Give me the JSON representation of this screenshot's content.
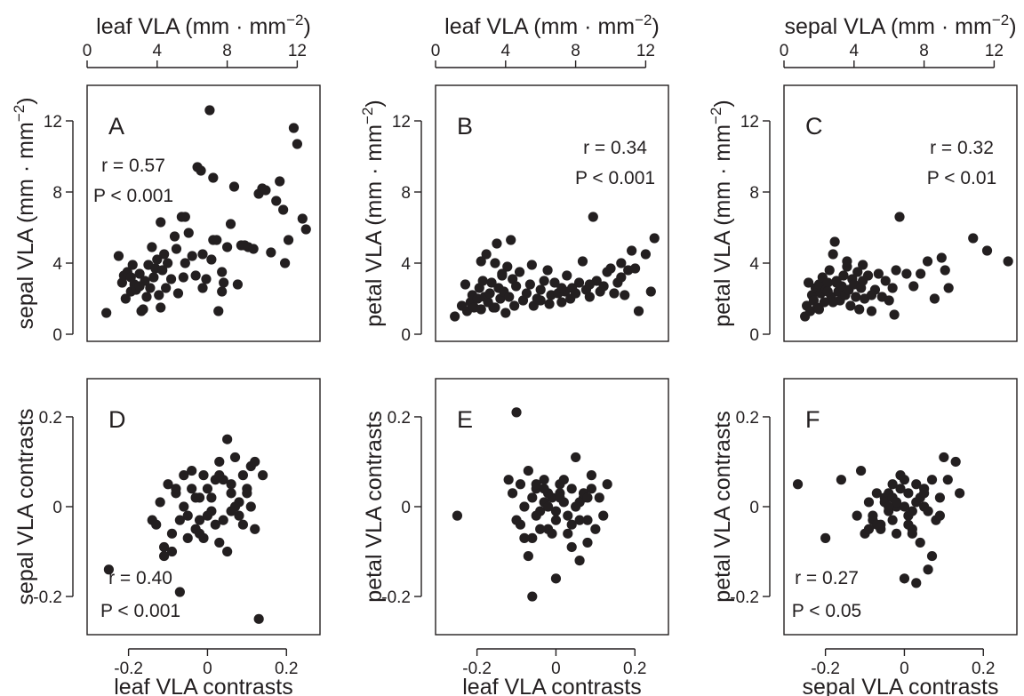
{
  "figure_title": "",
  "chart_data": [
    {
      "type": "scatter",
      "panel": "A",
      "xlabel": "leaf VLA (mm · mm−2)",
      "x_axis_side": "top",
      "ylabel": "sepal VLA (mm · mm−2)",
      "xlim": [
        0,
        13.3
      ],
      "ylim": [
        -0.4,
        14.0
      ],
      "xticks": [
        0,
        4,
        8,
        12
      ],
      "yticks": [
        0,
        4,
        8,
        12
      ],
      "r": "r = 0.57",
      "p": "P < 0.001",
      "x": [
        1.1,
        1.8,
        2.0,
        2.1,
        2.2,
        2.3,
        2.5,
        2.6,
        2.7,
        2.8,
        3.0,
        3.1,
        3.2,
        3.3,
        3.4,
        3.5,
        3.6,
        3.7,
        3.8,
        3.9,
        4.0,
        4.1,
        4.2,
        4.3,
        4.4,
        4.5,
        4.6,
        4.8,
        5.0,
        5.1,
        5.2,
        5.4,
        5.5,
        5.6,
        5.8,
        6.0,
        6.2,
        6.3,
        6.5,
        6.6,
        6.8,
        7.0,
        7.1,
        7.2,
        7.4,
        7.5,
        7.7,
        7.8,
        8.0,
        8.2,
        8.4,
        8.6,
        8.8,
        9.0,
        9.2,
        9.5,
        9.8,
        10.0,
        10.2,
        10.5,
        10.8,
        11.0,
        11.2,
        11.3,
        11.5,
        11.8,
        12.0,
        12.3,
        12.5,
        6.6,
        7.2,
        7.7,
        4.2,
        5.6,
        2.5,
        3.0
      ],
      "y": [
        1.2,
        4.4,
        2.9,
        3.3,
        2.0,
        3.5,
        2.4,
        3.9,
        2.8,
        2.5,
        3.4,
        1.3,
        1.4,
        3.0,
        2.1,
        3.9,
        2.6,
        4.9,
        3.2,
        3.7,
        4.2,
        2.2,
        1.5,
        3.6,
        4.5,
        2.6,
        4.0,
        3.1,
        5.5,
        4.8,
        2.3,
        6.6,
        3.2,
        4.0,
        5.7,
        4.4,
        3.3,
        9.4,
        9.2,
        2.6,
        3.1,
        12.6,
        4.2,
        8.8,
        5.3,
        1.3,
        3.5,
        2.9,
        4.9,
        6.2,
        8.3,
        2.8,
        5.0,
        5.0,
        4.9,
        4.8,
        7.9,
        8.2,
        8.1,
        4.6,
        7.5,
        8.6,
        7.0,
        4.0,
        5.3,
        11.6,
        10.7,
        6.5,
        5.9,
        4.5,
        5.3,
        2.4,
        6.3,
        6.6,
        3.2,
        2.7
      ]
    },
    {
      "type": "scatter",
      "panel": "B",
      "xlabel": "leaf VLA (mm · mm−2)",
      "x_axis_side": "top",
      "ylabel": "petal VLA (mm · mm−2)",
      "xlim": [
        0,
        13.3
      ],
      "ylim": [
        -0.4,
        14.0
      ],
      "xticks": [
        0,
        4,
        8,
        12
      ],
      "yticks": [
        0,
        4,
        8,
        12
      ],
      "r": "r = 0.34",
      "p": "P < 0.001",
      "x": [
        1.1,
        1.5,
        1.7,
        1.8,
        2.0,
        2.1,
        2.2,
        2.4,
        2.5,
        2.6,
        2.7,
        2.8,
        2.9,
        3.0,
        3.1,
        3.2,
        3.3,
        3.4,
        3.5,
        3.6,
        3.7,
        3.8,
        3.9,
        4.0,
        4.1,
        4.2,
        4.3,
        4.4,
        4.5,
        4.6,
        4.8,
        5.0,
        5.2,
        5.4,
        5.5,
        5.6,
        5.8,
        6.0,
        6.2,
        6.4,
        6.5,
        6.6,
        6.8,
        7.0,
        7.2,
        7.4,
        7.5,
        7.7,
        7.8,
        8.0,
        8.2,
        8.4,
        8.6,
        8.8,
        9.0,
        9.2,
        9.4,
        9.6,
        9.8,
        10.0,
        10.2,
        10.4,
        10.6,
        10.8,
        11.0,
        11.2,
        11.4,
        11.6,
        12.0,
        12.3,
        12.5,
        8.8,
        3.4,
        3.8,
        7.2,
        6.0,
        10.6,
        2.6
      ],
      "y": [
        1.0,
        1.6,
        2.8,
        1.3,
        1.8,
        2.2,
        1.5,
        2.0,
        2.6,
        1.4,
        3.0,
        2.1,
        4.5,
        1.8,
        2.3,
        2.9,
        1.5,
        4.0,
        5.1,
        2.6,
        2.0,
        3.3,
        2.4,
        1.2,
        3.8,
        2.1,
        5.3,
        3.1,
        1.6,
        2.7,
        3.5,
        1.9,
        2.3,
        2.8,
        3.9,
        1.6,
        2.0,
        2.5,
        3.0,
        3.6,
        1.7,
        2.2,
        2.9,
        2.3,
        1.8,
        2.4,
        3.3,
        2.0,
        2.6,
        2.3,
        2.9,
        4.1,
        2.5,
        2.1,
        6.6,
        3.0,
        2.4,
        2.7,
        3.5,
        3.7,
        2.3,
        2.9,
        4.0,
        2.2,
        3.6,
        4.7,
        3.7,
        1.3,
        4.5,
        2.4,
        5.4,
        2.8,
        1.5,
        3.4,
        2.6,
        1.9,
        3.2,
        4.1
      ]
    },
    {
      "type": "scatter",
      "panel": "C",
      "xlabel": "sepal VLA (mm · mm−2)",
      "x_axis_side": "top",
      "ylabel": "petal VLA (mm · mm−2)",
      "xlim": [
        0,
        13.3
      ],
      "ylim": [
        -0.4,
        14.0
      ],
      "xticks": [
        0,
        4,
        8,
        12
      ],
      "yticks": [
        0,
        4,
        8,
        12
      ],
      "r": "r = 0.32",
      "p": "P < 0.01",
      "x": [
        1.2,
        1.3,
        1.4,
        1.5,
        1.6,
        1.7,
        1.8,
        1.9,
        2.0,
        2.1,
        2.2,
        2.3,
        2.4,
        2.5,
        2.6,
        2.7,
        2.8,
        2.9,
        3.0,
        3.1,
        3.2,
        3.3,
        3.4,
        3.5,
        3.6,
        3.7,
        3.8,
        3.9,
        4.0,
        4.1,
        4.2,
        4.3,
        4.4,
        4.5,
        4.6,
        4.8,
        5.0,
        5.2,
        5.4,
        5.6,
        5.8,
        6.0,
        6.2,
        6.4,
        6.6,
        7.0,
        7.4,
        7.8,
        8.2,
        8.6,
        9.0,
        9.2,
        9.4,
        10.8,
        11.6,
        12.8,
        6.3,
        2.5,
        3.0,
        3.6,
        4.5,
        5.0,
        2.0,
        2.8
      ],
      "y": [
        1.0,
        1.6,
        2.9,
        1.3,
        2.2,
        1.9,
        2.6,
        1.5,
        2.8,
        2.3,
        3.2,
        1.8,
        2.5,
        2.9,
        3.6,
        2.1,
        4.5,
        5.2,
        3.0,
        2.4,
        1.9,
        2.7,
        3.3,
        2.2,
        3.8,
        2.5,
        1.6,
        3.1,
        2.8,
        2.1,
        3.5,
        1.4,
        2.6,
        3.9,
        2.0,
        3.3,
        1.3,
        2.5,
        3.4,
        2.1,
        3.0,
        1.9,
        2.6,
        3.6,
        6.6,
        3.4,
        2.7,
        3.4,
        4.1,
        2.0,
        4.3,
        3.6,
        2.6,
        5.4,
        4.7,
        4.1,
        1.1,
        2.4,
        2.9,
        4.1,
        3.0,
        2.2,
        1.4,
        1.8
      ]
    },
    {
      "type": "scatter",
      "panel": "D",
      "xlabel": "leaf VLA contrasts",
      "x_axis_side": "bottom",
      "ylabel": "sepal VLA contrasts",
      "xlim": [
        -0.305,
        0.285
      ],
      "ylim": [
        -0.285,
        0.285
      ],
      "xticks": [
        -0.2,
        0,
        0.2
      ],
      "yticks": [
        -0.2,
        0,
        0.2
      ],
      "xticklabels": [
        "-0.2",
        "0",
        "0.2"
      ],
      "yticklabels": [
        "-0.2",
        "0",
        "0.2"
      ],
      "r": "r = 0.40",
      "p": "P < 0.001",
      "x": [
        -0.25,
        -0.14,
        -0.13,
        -0.12,
        -0.11,
        -0.1,
        -0.09,
        -0.08,
        -0.07,
        -0.06,
        -0.05,
        -0.04,
        -0.03,
        -0.02,
        -0.01,
        0.0,
        0.01,
        0.02,
        0.03,
        0.04,
        0.05,
        0.06,
        0.07,
        0.08,
        0.09,
        0.1,
        0.11,
        0.12,
        0.13,
        0.14,
        -0.09,
        -0.06,
        -0.04,
        -0.02,
        0.01,
        0.03,
        0.06,
        0.08,
        -0.07,
        -0.03,
        0.0,
        0.04,
        0.07,
        0.1,
        -0.05,
        0.02,
        0.05,
        -0.01,
        0.09,
        0.12,
        -0.11,
        0.06,
        -0.08,
        -0.02,
        0.03,
        0.11
      ],
      "y": [
        -0.14,
        -0.03,
        -0.04,
        0.01,
        -0.09,
        0.05,
        -0.06,
        0.03,
        -0.19,
        0.07,
        -0.02,
        0.08,
        -0.05,
        0.02,
        -0.07,
        0.04,
        -0.01,
        0.06,
        0.1,
        -0.03,
        0.15,
        0.03,
        0.11,
        -0.02,
        0.07,
        0.04,
        0.09,
        -0.05,
        -0.25,
        0.07,
        -0.1,
        0.0,
        0.04,
        -0.06,
        0.02,
        -0.08,
        0.05,
        0.01,
        -0.03,
        0.02,
        -0.02,
        0.06,
        0.0,
        0.03,
        -0.07,
        -0.04,
        -0.1,
        0.07,
        -0.04,
        0.1,
        -0.11,
        -0.01,
        0.04,
        -0.03,
        0.07,
        0.0
      ]
    },
    {
      "type": "scatter",
      "panel": "E",
      "xlabel": "leaf VLA contrasts",
      "x_axis_side": "bottom",
      "ylabel": "petal VLA contrasts",
      "xlim": [
        -0.305,
        0.285
      ],
      "ylim": [
        -0.285,
        0.285
      ],
      "xticks": [
        -0.2,
        0,
        0.2
      ],
      "yticks": [
        -0.2,
        0,
        0.2
      ],
      "xticklabels": [
        "-0.2",
        "0",
        "0.2"
      ],
      "yticklabels": [
        "-0.2",
        "0",
        "0.2"
      ],
      "r": "",
      "p": "",
      "x": [
        -0.25,
        -0.12,
        -0.11,
        -0.1,
        -0.09,
        -0.08,
        -0.07,
        -0.06,
        -0.05,
        -0.04,
        -0.03,
        -0.02,
        -0.01,
        0.0,
        0.01,
        0.02,
        0.03,
        0.04,
        0.05,
        0.06,
        0.07,
        0.08,
        0.09,
        0.1,
        0.11,
        0.12,
        0.13,
        -0.1,
        -0.08,
        -0.06,
        -0.04,
        -0.02,
        0.0,
        0.02,
        0.04,
        0.06,
        0.08,
        -0.09,
        -0.07,
        -0.05,
        -0.03,
        -0.01,
        0.01,
        0.03,
        0.05,
        0.07,
        -0.06,
        -0.03,
        0.0,
        0.04,
        0.09,
        -0.02,
        -0.05,
        0.06,
        0.01,
        0.08
      ],
      "y": [
        -0.02,
        0.06,
        0.03,
        0.21,
        -0.04,
        0.0,
        0.08,
        -0.07,
        0.04,
        -0.01,
        0.06,
        -0.05,
        0.02,
        -0.03,
        0.05,
        0.01,
        -0.06,
        0.04,
        0.11,
        -0.12,
        0.02,
        -0.03,
        0.07,
        -0.05,
        0.02,
        -0.02,
        0.05,
        -0.03,
        -0.07,
        0.02,
        -0.05,
        0.03,
        -0.01,
        0.06,
        -0.04,
        0.01,
        -0.08,
        0.05,
        -0.11,
        -0.02,
        0.04,
        -0.06,
        0.03,
        -0.02,
        0.0,
        0.03,
        -0.2,
        0.01,
        -0.16,
        -0.09,
        0.04,
        0.0,
        0.05,
        -0.03,
        0.02,
        0.02
      ]
    },
    {
      "type": "scatter",
      "panel": "F",
      "xlabel": "sepal VLA contrasts",
      "x_axis_side": "bottom",
      "ylabel": "petal VLA contrasts",
      "xlim": [
        -0.305,
        0.285
      ],
      "ylim": [
        -0.285,
        0.285
      ],
      "xticks": [
        -0.2,
        0,
        0.2
      ],
      "yticks": [
        -0.2,
        0,
        0.2
      ],
      "xticklabels": [
        "-0.2",
        "0",
        "0.2"
      ],
      "yticklabels": [
        "-0.2",
        "0",
        "0.2"
      ],
      "r": "r = 0.27",
      "p": "P < 0.05",
      "x": [
        -0.27,
        -0.2,
        -0.16,
        -0.12,
        -0.11,
        -0.1,
        -0.09,
        -0.08,
        -0.07,
        -0.06,
        -0.05,
        -0.04,
        -0.03,
        -0.02,
        -0.01,
        0.0,
        0.01,
        0.02,
        0.03,
        0.04,
        0.05,
        0.06,
        0.07,
        0.08,
        0.09,
        0.1,
        0.11,
        0.13,
        -0.08,
        -0.05,
        -0.03,
        -0.01,
        0.01,
        0.03,
        0.05,
        0.07,
        -0.06,
        -0.04,
        -0.02,
        0.0,
        0.02,
        0.04,
        0.06,
        -0.07,
        -0.03,
        0.01,
        0.05,
        0.09,
        -0.02,
        0.03,
        -0.09,
        0.06,
        -0.04,
        0.02,
        0.0,
        0.14
      ],
      "y": [
        0.05,
        -0.07,
        0.06,
        -0.02,
        0.08,
        -0.06,
        0.01,
        -0.03,
        0.03,
        -0.04,
        0.02,
        -0.01,
        0.05,
        -0.06,
        0.07,
        -0.16,
        0.03,
        -0.05,
        0.01,
        -0.08,
        0.04,
        -0.01,
        0.06,
        -0.03,
        0.02,
        0.11,
        0.06,
        0.1,
        -0.02,
        0.01,
        -0.03,
        0.04,
        -0.02,
        -0.17,
        0.0,
        -0.11,
        -0.05,
        0.03,
        0.0,
        0.06,
        -0.06,
        0.02,
        -0.01,
        -0.04,
        0.02,
        -0.04,
        0.03,
        -0.02,
        0.01,
        0.05,
        -0.05,
        -0.14,
        0.0,
        -0.01,
        0.0,
        0.03
      ]
    }
  ]
}
